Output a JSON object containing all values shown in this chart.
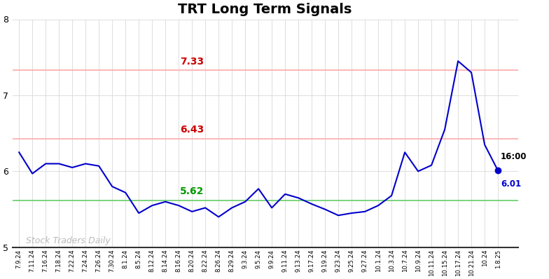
{
  "title": "TRT Long Term Signals",
  "xlabels": [
    "7.9.24",
    "7.11.24",
    "7.16.24",
    "7.18.24",
    "7.22.24",
    "7.24.24",
    "7.26.24",
    "7.30.24",
    "8.1.24",
    "8.5.24",
    "8.12.24",
    "8.14.24",
    "8.16.24",
    "8.20.24",
    "8.22.24",
    "8.26.24",
    "8.29.24",
    "9.3.24",
    "9.5.24",
    "9.9.24",
    "9.11.24",
    "9.13.24",
    "9.17.24",
    "9.19.24",
    "9.23.24",
    "9.25.24",
    "9.27.24",
    "10.1.24",
    "10.3.24",
    "10.7.24",
    "10.9.24",
    "10.11.24",
    "10.15.24",
    "10.17.24",
    "10.21.24",
    "10.24",
    "1.8.25"
  ],
  "yvalues": [
    6.25,
    5.97,
    6.1,
    6.1,
    6.05,
    6.1,
    6.07,
    5.8,
    5.72,
    5.45,
    5.55,
    5.6,
    5.55,
    5.47,
    5.52,
    5.4,
    5.52,
    5.6,
    5.77,
    5.52,
    5.7,
    5.65,
    5.57,
    5.5,
    5.42,
    5.45,
    5.47,
    5.55,
    5.68,
    6.25,
    6.0,
    6.08,
    6.55,
    7.45,
    7.3,
    6.35,
    6.01
  ],
  "hline_red_upper": 7.33,
  "hline_red_lower": 6.43,
  "hline_green": 5.62,
  "label_7_33": "7.33",
  "label_6_43": "6.43",
  "label_5_62": "5.62",
  "label_last_time": "16:00",
  "label_last_val": "6.01",
  "watermark": "Stock Traders Daily",
  "ylim": [
    5.0,
    8.0
  ],
  "line_color": "#0000cc",
  "red_line_color": "#ffaaaa",
  "red_text_color": "#cc0000",
  "green_line_color": "#66cc66",
  "green_text_color": "#009900",
  "watermark_color": "#bbbbbb",
  "bg_color": "#ffffff",
  "grid_color": "#dddddd",
  "title_fontsize": 14
}
